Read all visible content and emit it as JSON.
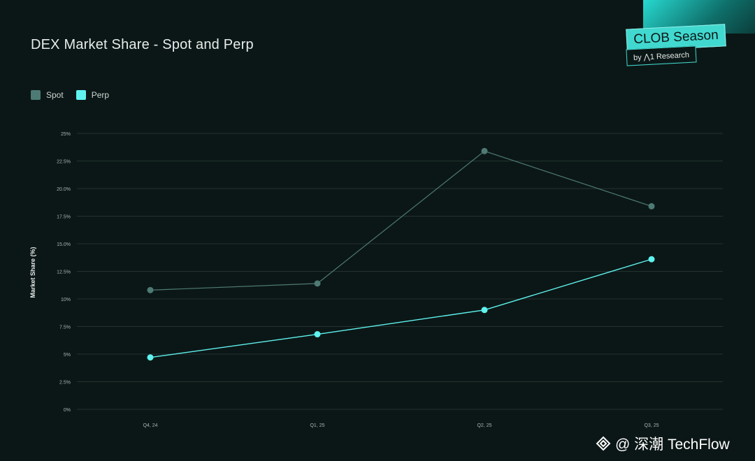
{
  "chart_data": {
    "type": "line",
    "title": "DEX Market Share - Spot and Perp",
    "ylabel": "Market Share (%)",
    "xlabel": "",
    "categories": [
      "Q4, 24",
      "Q1, 25",
      "Q2, 25",
      "Q3, 25"
    ],
    "ylim": [
      0,
      25
    ],
    "yticks": [
      0,
      2.5,
      5,
      7.5,
      10,
      12.5,
      15,
      17.5,
      20,
      22.5,
      25
    ],
    "ytick_labels": [
      "0%",
      "2.5%",
      "5%",
      "7.5%",
      "10%",
      "12.5%",
      "15.0%",
      "17.5%",
      "20.0%",
      "22.5%",
      "25%"
    ],
    "grid": "horizontal",
    "legend": "top-left",
    "series": [
      {
        "name": "Spot",
        "color": "#4e7a74",
        "values": [
          10.8,
          11.4,
          23.4,
          18.4
        ]
      },
      {
        "name": "Perp",
        "color": "#5ff2ef",
        "values": [
          4.7,
          6.8,
          9.0,
          13.6
        ]
      }
    ]
  },
  "brand": {
    "name": "CLOB Season",
    "sub": "by ⋀1 Research"
  },
  "watermark": {
    "text": "@ 深潮 TechFlow"
  },
  "colors": {
    "background": "#0b1716",
    "grid": "#233230",
    "accent": "#41d8cf"
  }
}
